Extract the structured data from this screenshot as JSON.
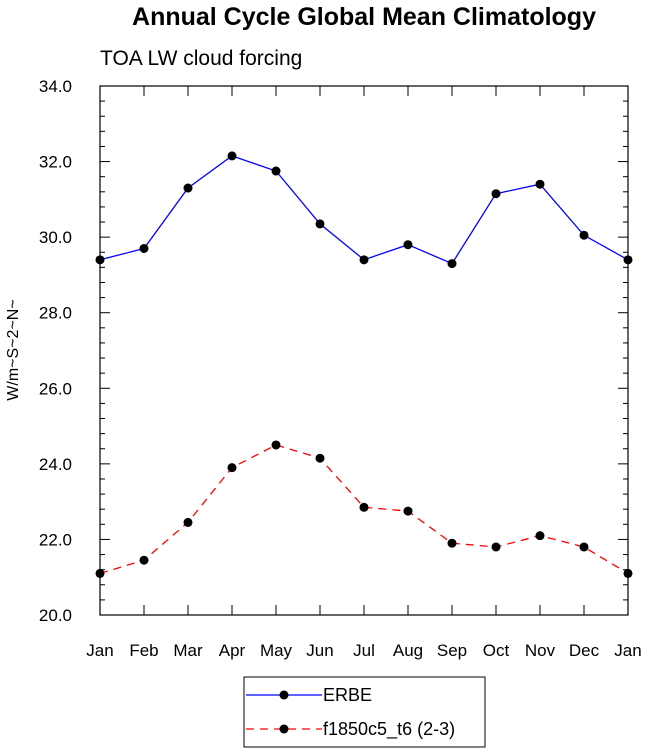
{
  "chart_data": {
    "type": "line",
    "title": "Annual Cycle Global Mean Climatology",
    "subtitle": "TOA LW cloud forcing",
    "xlabel": "",
    "ylabel": "W/m~S~2~N~",
    "categories": [
      "Jan",
      "Feb",
      "Mar",
      "Apr",
      "May",
      "Jun",
      "Jul",
      "Aug",
      "Sep",
      "Oct",
      "Nov",
      "Dec",
      "Jan"
    ],
    "ylim": [
      20.0,
      34.0
    ],
    "yticks": [
      "20.0",
      "22.0",
      "24.0",
      "26.0",
      "28.0",
      "30.0",
      "32.0",
      "34.0"
    ],
    "series": [
      {
        "name": "ERBE",
        "color": "#0000ff",
        "dash": "solid",
        "marker": "circle",
        "values": [
          29.4,
          29.7,
          31.3,
          32.15,
          31.75,
          30.35,
          29.4,
          29.8,
          29.3,
          31.15,
          31.4,
          30.05,
          29.4
        ]
      },
      {
        "name": "f1850c5_t6 (2-3)",
        "color": "#ff0000",
        "dash": "dashed",
        "marker": "circle",
        "values": [
          21.1,
          21.45,
          22.45,
          23.9,
          24.5,
          24.15,
          22.85,
          22.75,
          21.9,
          21.8,
          22.1,
          21.8,
          21.1
        ]
      }
    ],
    "legend_position": "bottom-center",
    "grid": false
  }
}
